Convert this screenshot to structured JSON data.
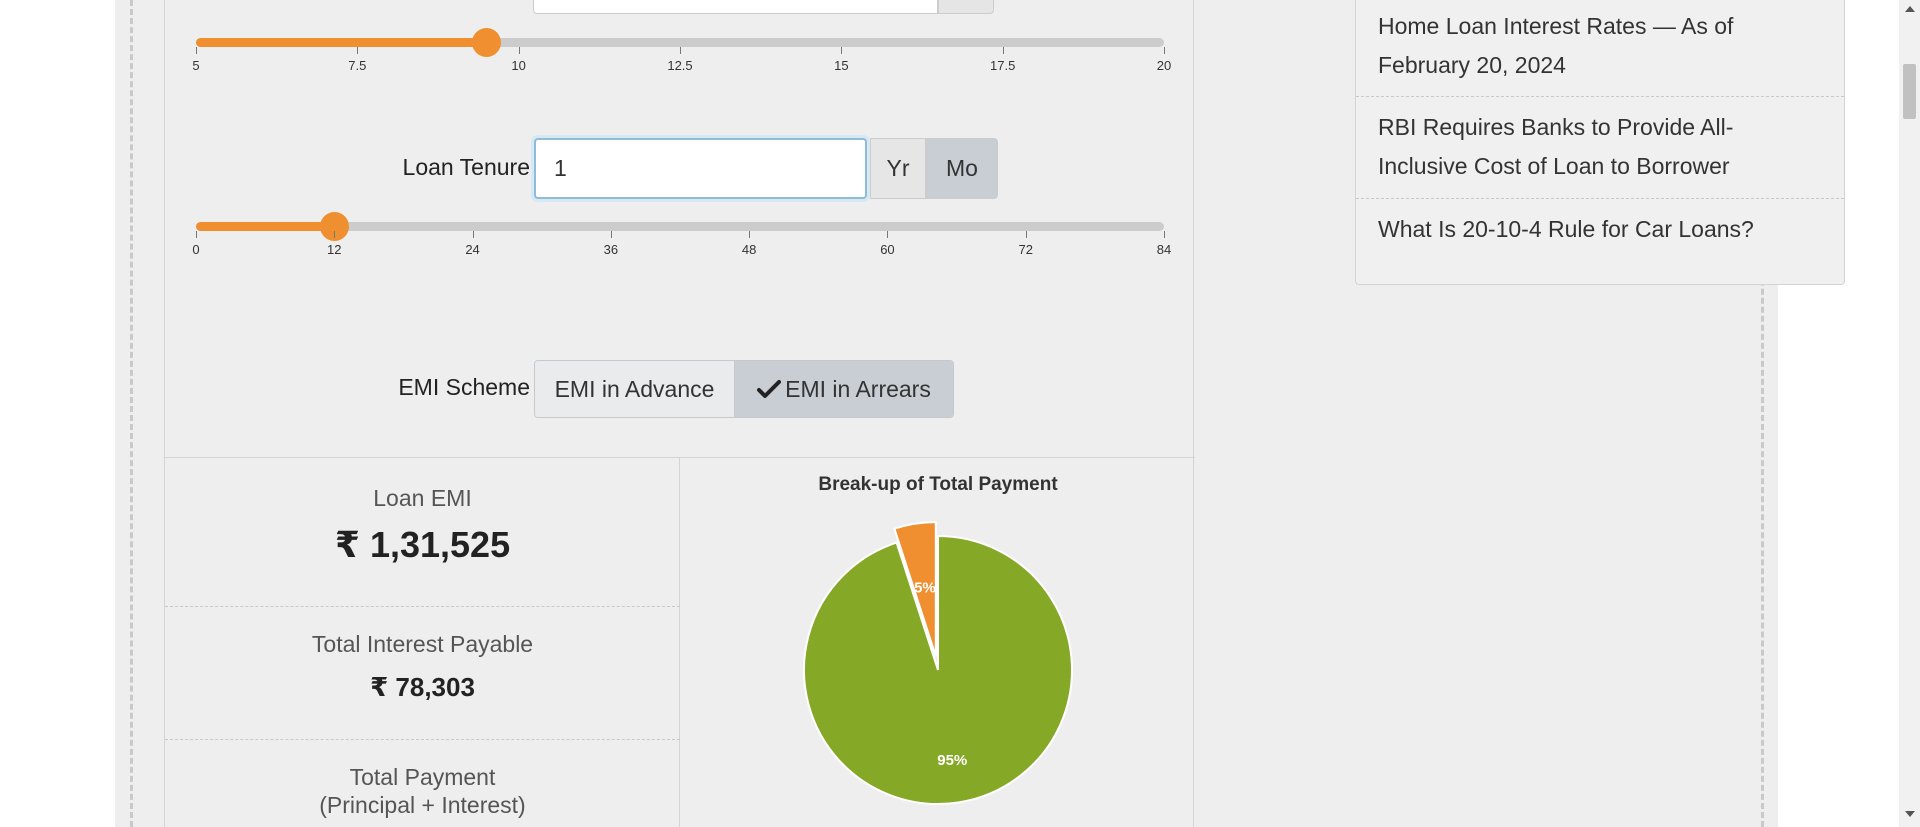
{
  "interest_slider": {
    "value": 9.5,
    "min": 5,
    "max": 20,
    "ticks": [
      "5",
      "7.5",
      "10",
      "12.5",
      "15",
      "17.5",
      "20"
    ]
  },
  "tenure": {
    "label": "Loan Tenure",
    "value": "1",
    "unit_year": "Yr",
    "unit_month": "Mo",
    "selected_unit": "Mo"
  },
  "tenure_slider": {
    "value": 12,
    "min": 0,
    "max": 84,
    "ticks": [
      "0",
      "12",
      "24",
      "36",
      "48",
      "60",
      "72",
      "84"
    ]
  },
  "emi_scheme": {
    "label": "EMI Scheme",
    "advance_label": "EMI in Advance",
    "arrears_label": "EMI in Arrears",
    "selected": "arrears",
    "check_icon": "check-icon"
  },
  "summary": {
    "loan_emi_label": "Loan EMI",
    "loan_emi_value": "₹ 1,31,525",
    "total_interest_label": "Total Interest Payable",
    "total_interest_value": "₹ 78,303",
    "total_payment_label_1": "Total Payment",
    "total_payment_label_2": "(Principal + Interest)"
  },
  "chart_data": {
    "type": "pie",
    "title": "Break-up of Total Payment",
    "slices": [
      {
        "label": "5%",
        "value": 5,
        "color": "#ef8f2f",
        "exploded": true
      },
      {
        "label": "95%",
        "value": 95,
        "color": "#86a827",
        "exploded": false
      }
    ]
  },
  "sidebar": {
    "items": [
      {
        "line1": "Home Loan Interest Rates — As of",
        "line2": "February 20, 2024"
      },
      {
        "line1": "RBI Requires Banks to Provide All-",
        "line2": "Inclusive Cost of Loan to Borrower"
      },
      {
        "line1": "What Is 20-10-4 Rule for Car Loans?",
        "line2": ""
      }
    ]
  },
  "colors": {
    "accent": "#ef8f2f",
    "principal": "#86a827"
  }
}
